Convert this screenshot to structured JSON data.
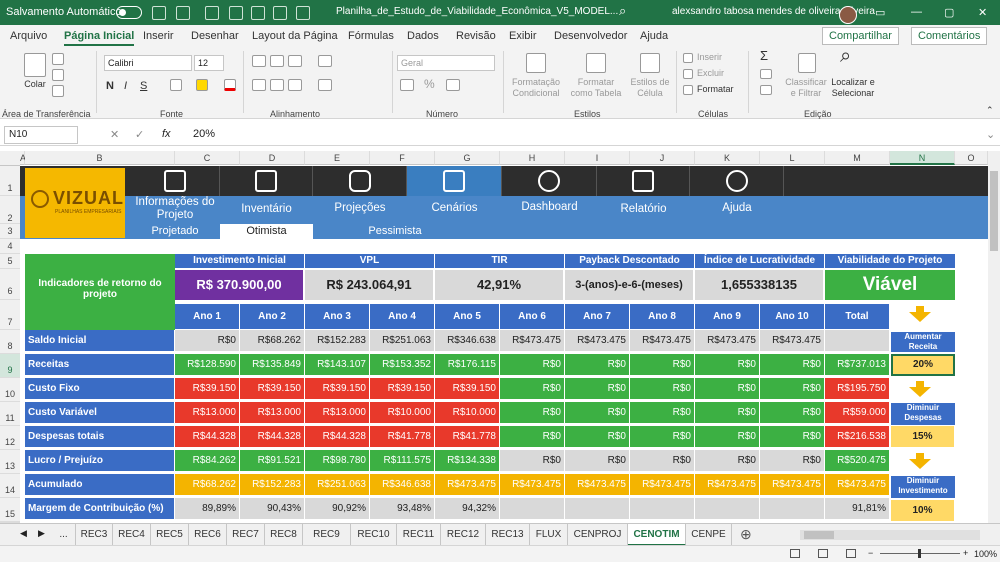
{
  "title_bar": {
    "autosave": "Salvamento Automático",
    "filename": "Planilha_de_Estudo_de_Viabilidade_Econômica_V5_MODEL...",
    "user": "alexsandro tabosa mendes de oliveira oliveira"
  },
  "menu": {
    "items": [
      "Arquivo",
      "Página Inicial",
      "Inserir",
      "Desenhar",
      "Layout da Página",
      "Fórmulas",
      "Dados",
      "Revisão",
      "Exibir",
      "Desenvolvedor",
      "Ajuda"
    ],
    "share": "Compartilhar",
    "comments": "Comentários"
  },
  "ribbon": {
    "paste": "Colar",
    "clipboard": "Área de Transferência",
    "font_name": "Calibri",
    "font_size": "12",
    "bold": "N",
    "italic": "I",
    "underline": "S",
    "font": "Fonte",
    "alignment": "Alinhamento",
    "number_format": "Geral",
    "number": "Número",
    "cond_format": "Formatação Condicional",
    "format_table": "Formatar como Tabela",
    "cell_styles": "Estilos de Célula",
    "styles": "Estilos",
    "insert": "Inserir",
    "delete": "Excluir",
    "format": "Formatar",
    "cells": "Células",
    "sort_filter": "Classificar e Filtrar",
    "find_select": "Localizar e Selecionar",
    "editing": "Edição"
  },
  "formula_bar": {
    "name_box": "N10",
    "fx": "fx",
    "value": "20%"
  },
  "columns": [
    "A",
    "B",
    "C",
    "D",
    "E",
    "F",
    "G",
    "H",
    "I",
    "J",
    "K",
    "L",
    "M",
    "N",
    "O"
  ],
  "rows": [
    "1",
    "2",
    "3",
    "4",
    "5",
    "6",
    "7",
    "8",
    "9",
    "10",
    "11",
    "12",
    "13",
    "14",
    "15",
    "16"
  ],
  "logo": {
    "text": "VIZUAL",
    "sub": "PLANILHAS EMPRESARIAIS"
  },
  "nav": {
    "items": [
      "Informações do Projeto",
      "Inventário",
      "Projeções",
      "Cenários",
      "Dashboard",
      "Relatório",
      "Ajuda"
    ],
    "sub": [
      "Projetado",
      "Otimista",
      "Pessimista"
    ]
  },
  "indicators": {
    "label": "Indicadores de retorno do projeto",
    "headers": [
      "Investimento Inicial",
      "VPL",
      "TIR",
      "Payback Descontado",
      "Índice de Lucratividade",
      "Viabilidade do Projeto"
    ],
    "values": [
      "R$ 370.900,00",
      "R$ 243.064,91",
      "42,91%",
      "3-(anos)-e-6-(meses)",
      "1,655338135",
      "Viável"
    ]
  },
  "years": [
    "Ano 1",
    "Ano 2",
    "Ano 3",
    "Ano 4",
    "Ano 5",
    "Ano 6",
    "Ano 7",
    "Ano 8",
    "Ano 9",
    "Ano 10",
    "Total"
  ],
  "table": [
    {
      "label": "Saldo Inicial",
      "values": [
        "R$0",
        "R$68.262",
        "R$152.283",
        "R$251.063",
        "R$346.638",
        "R$473.475",
        "R$473.475",
        "R$473.475",
        "R$473.475",
        "R$473.475",
        ""
      ]
    },
    {
      "label": "Receitas",
      "values": [
        "R$128.590",
        "R$135.849",
        "R$143.107",
        "R$153.352",
        "R$176.115",
        "R$0",
        "R$0",
        "R$0",
        "R$0",
        "R$0",
        "R$737.013"
      ]
    },
    {
      "label": "Custo Fixo",
      "values": [
        "R$39.150",
        "R$39.150",
        "R$39.150",
        "R$39.150",
        "R$39.150",
        "R$0",
        "R$0",
        "R$0",
        "R$0",
        "R$0",
        "R$195.750"
      ]
    },
    {
      "label": "Custo Variável",
      "values": [
        "R$13.000",
        "R$13.000",
        "R$13.000",
        "R$10.000",
        "R$10.000",
        "R$0",
        "R$0",
        "R$0",
        "R$0",
        "R$0",
        "R$59.000"
      ]
    },
    {
      "label": "Despesas totais",
      "values": [
        "R$44.328",
        "R$44.328",
        "R$44.328",
        "R$41.778",
        "R$41.778",
        "R$0",
        "R$0",
        "R$0",
        "R$0",
        "R$0",
        "R$216.538"
      ]
    },
    {
      "label": "Lucro / Prejuízo",
      "values": [
        "R$84.262",
        "R$91.521",
        "R$98.780",
        "R$111.575",
        "R$134.338",
        "R$0",
        "R$0",
        "R$0",
        "R$0",
        "R$0",
        "R$520.475"
      ]
    },
    {
      "label": "Acumulado",
      "values": [
        "R$68.262",
        "R$152.283",
        "R$251.063",
        "R$346.638",
        "R$473.475",
        "R$473.475",
        "R$473.475",
        "R$473.475",
        "R$473.475",
        "R$473.475",
        "R$473.475"
      ]
    },
    {
      "label": "Margem de Contribuição (%)",
      "values": [
        "89,89%",
        "90,43%",
        "90,92%",
        "93,48%",
        "94,32%",
        "",
        "",
        "",
        "",
        "",
        "91,81%"
      ]
    }
  ],
  "side": {
    "increase": "Aumentar Receita",
    "increase_val": "20%",
    "dec_exp": "Diminuir Despesas",
    "dec_exp_val": "15%",
    "dec_inv": "Diminuir Investimento",
    "dec_inv_val": "10%"
  },
  "sheet_tabs": [
    "...",
    "REC3",
    "REC4",
    "REC5",
    "REC6",
    "REC7",
    "REC8",
    "REC9",
    "REC10",
    "REC11",
    "REC12",
    "REC13",
    "FLUX",
    "CENPROJ",
    "CENOTIM",
    "CENPE"
  ],
  "status": {
    "zoom": "100%"
  },
  "colors": {
    "excel_green": "#217346",
    "row_blue": "#3a6cc5",
    "green": "#3cb043",
    "red": "#e8392b",
    "orange": "#f4b400",
    "purple": "#7030a0"
  }
}
